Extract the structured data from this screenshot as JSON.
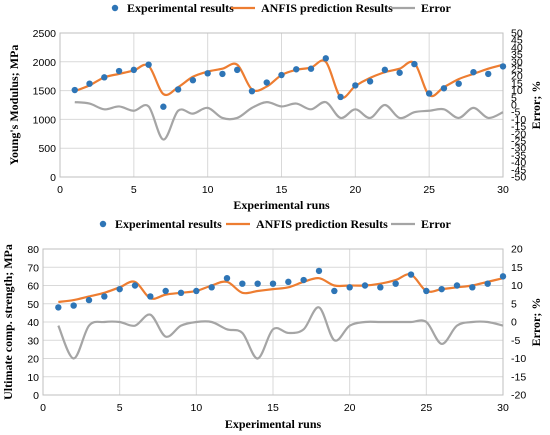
{
  "colors": {
    "experimental": "#2e75b6",
    "anfis": "#ed7d31",
    "error": "#a5a5a5"
  },
  "chart_data": [
    {
      "type": "line",
      "xlabel": "Experimental runs",
      "ylabel": "Young's Modulus; MPa",
      "y2label": "Error; %",
      "xlim": [
        0,
        30
      ],
      "ylim": [
        0,
        2500
      ],
      "y2lim": [
        -50,
        50
      ],
      "xticks": [
        0,
        5,
        10,
        15,
        20,
        25,
        30
      ],
      "yticks": [
        0,
        500,
        1000,
        1500,
        2000,
        2500
      ],
      "y2ticks": [
        -50,
        -45,
        -40,
        -35,
        -30,
        -25,
        -20,
        -15,
        -10,
        -5,
        0,
        5,
        10,
        15,
        20,
        25,
        30,
        35,
        40,
        45,
        50
      ],
      "grid": true,
      "legend_position": "top",
      "x": [
        1,
        2,
        3,
        4,
        5,
        6,
        7,
        8,
        9,
        10,
        11,
        12,
        13,
        14,
        15,
        16,
        17,
        18,
        19,
        20,
        21,
        22,
        23,
        24,
        25,
        26,
        27,
        28,
        29,
        30
      ],
      "series": [
        {
          "name": "Experimental results",
          "kind": "marker",
          "axis": "left",
          "values": [
            1510,
            1620,
            1730,
            1840,
            1860,
            1950,
            1220,
            1520,
            1680,
            1800,
            1790,
            1860,
            1490,
            1640,
            1770,
            1870,
            1880,
            2060,
            1390,
            1590,
            1660,
            1860,
            1810,
            1960,
            1450,
            1540,
            1620,
            1820,
            1790,
            1920
          ]
        },
        {
          "name": "ANFIS prediction Results",
          "kind": "line",
          "axis": "left",
          "values": [
            1490,
            1590,
            1730,
            1790,
            1850,
            1930,
            1440,
            1560,
            1740,
            1830,
            1880,
            1950,
            1520,
            1570,
            1770,
            1860,
            1900,
            2000,
            1390,
            1580,
            1720,
            1820,
            1880,
            1980,
            1420,
            1560,
            1700,
            1790,
            1880,
            1950
          ]
        },
        {
          "name": "Error",
          "kind": "line",
          "axis": "right",
          "values": [
            2,
            1,
            -3,
            -1,
            -4,
            -1,
            -24,
            -4,
            -6,
            -2,
            -9,
            -9,
            -2,
            2,
            -1,
            1,
            -3,
            2,
            -9,
            -3,
            -9,
            0,
            -9,
            -5,
            -4,
            -3,
            -9,
            -2,
            -9,
            -5
          ]
        }
      ]
    },
    {
      "type": "line",
      "xlabel": "Experimental runs",
      "ylabel": "Ultimate comp. strength; MPa",
      "y2label": "Error; %",
      "xlim": [
        0,
        30
      ],
      "ylim": [
        0,
        80
      ],
      "y2lim": [
        -20,
        20
      ],
      "xticks": [
        0,
        5,
        10,
        15,
        20,
        25,
        30
      ],
      "yticks": [
        0,
        10,
        20,
        30,
        40,
        50,
        60,
        70,
        80
      ],
      "y2ticks": [
        -20,
        -15,
        -10,
        -5,
        0,
        5,
        10,
        15,
        20
      ],
      "grid": true,
      "legend_position": "top",
      "x": [
        1,
        2,
        3,
        4,
        5,
        6,
        7,
        8,
        9,
        10,
        11,
        12,
        13,
        14,
        15,
        16,
        17,
        18,
        19,
        20,
        21,
        22,
        23,
        24,
        25,
        26,
        27,
        28,
        29,
        30
      ],
      "series": [
        {
          "name": "Experimental results",
          "kind": "marker",
          "axis": "left",
          "values": [
            48,
            49,
            52,
            54,
            58,
            60,
            54,
            57,
            56,
            57,
            59,
            64,
            61,
            61,
            61,
            62,
            63,
            68,
            57,
            59,
            60,
            59,
            61,
            66,
            57,
            58,
            60,
            59,
            61,
            65
          ]
        },
        {
          "name": "ANFIS prediction Results",
          "kind": "line",
          "axis": "left",
          "values": [
            51,
            52,
            54,
            56,
            59,
            62,
            53,
            55,
            56,
            57,
            60,
            62,
            56,
            57,
            58,
            59,
            62,
            64,
            60,
            60,
            60,
            61,
            63,
            66,
            57,
            58,
            59,
            60,
            62,
            64
          ]
        },
        {
          "name": "Error",
          "kind": "line",
          "axis": "right",
          "values": [
            -1,
            -10,
            -1,
            0,
            0,
            -1,
            2,
            -4,
            -1,
            0,
            0,
            -2,
            -3,
            -10,
            -2,
            -3,
            -2,
            4,
            -5,
            -1,
            0,
            0,
            0,
            0,
            0,
            -6,
            -1,
            0,
            0,
            -1
          ]
        }
      ]
    }
  ]
}
